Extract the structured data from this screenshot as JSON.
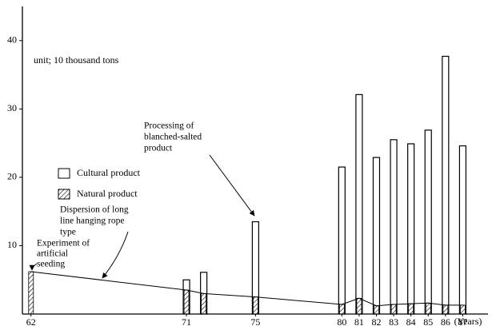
{
  "chart_data": {
    "type": "bar",
    "x": [
      62,
      71,
      72,
      75,
      80,
      81,
      82,
      83,
      84,
      85,
      86,
      87
    ],
    "series": [
      {
        "name": "Cultural product",
        "color": "#000000",
        "values": [
          null,
          5.0,
          6.1,
          13.5,
          21.5,
          32.1,
          22.9,
          25.5,
          24.9,
          26.9,
          37.7,
          24.6
        ]
      },
      {
        "name": "Natural product",
        "color": "#000000",
        "values": [
          6.2,
          3.5,
          3.0,
          2.5,
          1.4,
          2.3,
          1.2,
          1.4,
          1.5,
          1.6,
          1.3,
          1.3
        ]
      }
    ],
    "xlim": [
      61.5,
      88
    ],
    "xticks": [
      62,
      71,
      75,
      80,
      81,
      82,
      83,
      84,
      85,
      86,
      87
    ],
    "ylim": [
      0,
      45
    ],
    "yticks": [
      10,
      20,
      30,
      40
    ],
    "xlabel": "(Years)",
    "unit_note": "unit; 10 thousand tons",
    "annotations": [
      [
        "Processing of",
        "blanched-salted",
        "product"
      ],
      [
        "Dispersion of long",
        "line hanging rope",
        "type"
      ],
      [
        "Experiment of",
        "artificial",
        "seeding"
      ]
    ]
  }
}
